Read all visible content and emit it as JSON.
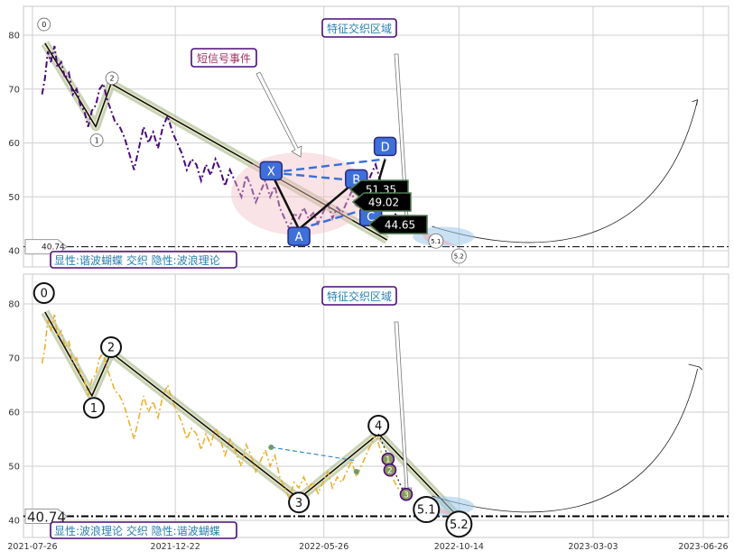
{
  "chart_data": [
    {
      "type": "line",
      "panel": "top",
      "ylim": [
        38,
        86
      ],
      "yticks": [
        40,
        50,
        60,
        70,
        80
      ],
      "grid": true,
      "legend": "",
      "series": [
        {
          "color": "#4b0a78",
          "style": "dash-dot",
          "points": [
            [
              "2021-08-05",
              69
            ],
            [
              "2021-08-08",
              72
            ],
            [
              "2021-08-11",
              77
            ],
            [
              "2021-08-14",
              75
            ],
            [
              "2021-08-18",
              78
            ],
            [
              "2021-08-21",
              74
            ],
            [
              "2021-08-25",
              75
            ],
            [
              "2021-08-29",
              72
            ],
            [
              "2021-09-02",
              73
            ],
            [
              "2021-09-06",
              69
            ],
            [
              "2021-09-10",
              70
            ],
            [
              "2021-09-14",
              67
            ],
            [
              "2021-09-18",
              66
            ],
            [
              "2021-09-22",
              63
            ],
            [
              "2021-09-26",
              66
            ],
            [
              "2021-09-30",
              67
            ],
            [
              "2021-10-04",
              70
            ],
            [
              "2021-10-08",
              71
            ],
            [
              "2021-10-12",
              68
            ],
            [
              "2021-10-16",
              66
            ],
            [
              "2021-10-20",
              64
            ],
            [
              "2021-10-25",
              63
            ],
            [
              "2021-10-30",
              61
            ],
            [
              "2021-11-04",
              58
            ],
            [
              "2021-11-09",
              55
            ],
            [
              "2021-11-14",
              59
            ],
            [
              "2021-11-19",
              63
            ],
            [
              "2021-11-24",
              60
            ],
            [
              "2021-11-29",
              62
            ],
            [
              "2021-12-04",
              59
            ],
            [
              "2021-12-09",
              63
            ],
            [
              "2021-12-14",
              65
            ],
            [
              "2021-12-19",
              62
            ],
            [
              "2021-12-24",
              60
            ],
            [
              "2021-12-29",
              58
            ],
            [
              "2022-01-03",
              55
            ],
            [
              "2022-01-08",
              57
            ],
            [
              "2022-01-13",
              56
            ],
            [
              "2022-01-18",
              53
            ],
            [
              "2022-01-23",
              56
            ],
            [
              "2022-01-28",
              54
            ],
            [
              "2022-02-02",
              57
            ],
            [
              "2022-02-07",
              55
            ],
            [
              "2022-02-12",
              52
            ],
            [
              "2022-02-17",
              55
            ],
            [
              "2022-02-22",
              53
            ],
            [
              "2022-03-01",
              50
            ],
            [
              "2022-03-06",
              54
            ],
            [
              "2022-03-11",
              52
            ],
            [
              "2022-03-16",
              49
            ],
            [
              "2022-03-21",
              51
            ],
            [
              "2022-03-26",
              53
            ],
            [
              "2022-03-31",
              50
            ],
            [
              "2022-04-05",
              52
            ],
            [
              "2022-04-10",
              48
            ],
            [
              "2022-04-15",
              46
            ],
            [
              "2022-04-20",
              44
            ],
            [
              "2022-04-25",
              47
            ],
            [
              "2022-04-30",
              46
            ],
            [
              "2022-05-05",
              48
            ],
            [
              "2022-05-10",
              46
            ],
            [
              "2022-05-15",
              47
            ],
            [
              "2022-05-20",
              45
            ],
            [
              "2022-05-25",
              47
            ],
            [
              "2022-05-30",
              49
            ],
            [
              "2022-06-04",
              46
            ],
            [
              "2022-06-09",
              48
            ],
            [
              "2022-06-14",
              47
            ],
            [
              "2022-06-19",
              49
            ],
            [
              "2022-06-24",
              51
            ],
            [
              "2022-06-29",
              48
            ],
            [
              "2022-07-04",
              50
            ],
            [
              "2022-07-09",
              52
            ],
            [
              "2022-07-14",
              54
            ],
            [
              "2022-07-19",
              56
            ],
            [
              "2022-07-24",
              53
            ],
            [
              "2022-07-29",
              51
            ],
            [
              "2022-08-03",
              49
            ],
            [
              "2022-08-08",
              47
            ],
            [
              "2022-08-13",
              45.5
            ],
            [
              "2022-08-18",
              44.5
            ],
            [
              "2022-08-23",
              44
            ]
          ]
        }
      ],
      "zigzag": [
        [
          "2021-08-08",
          78.5
        ],
        [
          "2021-09-30",
          63
        ],
        [
          "2021-10-16",
          71
        ],
        [
          "2022-07-31",
          42
        ]
      ],
      "pattern_points": [
        {
          "label": "X",
          "x": "2022-04-01",
          "y": 54.5
        },
        {
          "label": "A",
          "x": "2022-04-30",
          "y": 44
        },
        {
          "label": "B",
          "x": "2022-06-29",
          "y": 53
        },
        {
          "label": "C",
          "x": "2022-07-14",
          "y": 48
        },
        {
          "label": "D",
          "x": "2022-07-29",
          "y": 57
        }
      ],
      "wave_markers": [
        {
          "label": "0",
          "x": "2021-08-07",
          "y": 82
        },
        {
          "label": "1",
          "x": "2021-10-01",
          "y": 60.5
        },
        {
          "label": "2",
          "x": "2021-10-17",
          "y": 72
        },
        {
          "label": "5.1",
          "x": "2022-09-20",
          "y": 41.8
        },
        {
          "label": "5.2",
          "x": "2022-10-14",
          "y": 39
        }
      ],
      "price_labels": [
        "51.35",
        "49.02",
        "44.65"
      ],
      "annotations": {
        "short_signal": "短信号事件",
        "feature_zone": "特征交织区域",
        "summary": "显性:谐波蝴蝶 交织 隐性:波浪理论"
      },
      "hline": {
        "value": 40.74,
        "label": "40.74"
      }
    },
    {
      "type": "line",
      "panel": "bottom",
      "ylim": [
        38,
        86
      ],
      "yticks": [
        40,
        50,
        60,
        70,
        80
      ],
      "grid": true,
      "legend": "",
      "series": [
        {
          "color": "#e8b030",
          "style": "dash-dot",
          "points": [
            [
              "2021-08-05",
              69
            ],
            [
              "2021-08-08",
              72
            ],
            [
              "2021-08-11",
              77
            ],
            [
              "2021-08-14",
              75
            ],
            [
              "2021-08-18",
              78
            ],
            [
              "2021-08-21",
              74
            ],
            [
              "2021-08-25",
              75
            ],
            [
              "2021-08-29",
              72
            ],
            [
              "2021-09-02",
              73
            ],
            [
              "2021-09-06",
              69
            ],
            [
              "2021-09-10",
              70
            ],
            [
              "2021-09-14",
              67
            ],
            [
              "2021-09-18",
              66
            ],
            [
              "2021-09-22",
              63
            ],
            [
              "2021-09-26",
              66
            ],
            [
              "2021-09-30",
              67
            ],
            [
              "2021-10-04",
              70
            ],
            [
              "2021-10-08",
              71
            ],
            [
              "2021-10-12",
              68
            ],
            [
              "2021-10-16",
              66
            ],
            [
              "2021-10-20",
              64
            ],
            [
              "2021-10-25",
              63
            ],
            [
              "2021-10-30",
              61
            ],
            [
              "2021-11-04",
              58
            ],
            [
              "2021-11-09",
              55
            ],
            [
              "2021-11-14",
              59
            ],
            [
              "2021-11-19",
              63
            ],
            [
              "2021-11-24",
              60
            ],
            [
              "2021-11-29",
              62
            ],
            [
              "2021-12-04",
              59
            ],
            [
              "2021-12-09",
              63
            ],
            [
              "2021-12-14",
              65
            ],
            [
              "2021-12-19",
              62
            ],
            [
              "2021-12-24",
              60
            ],
            [
              "2021-12-29",
              58
            ],
            [
              "2022-01-03",
              55
            ],
            [
              "2022-01-08",
              57
            ],
            [
              "2022-01-13",
              56
            ],
            [
              "2022-01-18",
              53
            ],
            [
              "2022-01-23",
              56
            ],
            [
              "2022-01-28",
              54
            ],
            [
              "2022-02-02",
              57
            ],
            [
              "2022-02-07",
              55
            ],
            [
              "2022-02-12",
              52
            ],
            [
              "2022-02-17",
              55
            ],
            [
              "2022-02-22",
              53
            ],
            [
              "2022-03-01",
              50
            ],
            [
              "2022-03-06",
              54
            ],
            [
              "2022-03-11",
              52
            ],
            [
              "2022-03-16",
              49
            ],
            [
              "2022-03-21",
              51
            ],
            [
              "2022-03-26",
              53
            ],
            [
              "2022-03-31",
              50
            ],
            [
              "2022-04-05",
              52
            ],
            [
              "2022-04-10",
              48
            ],
            [
              "2022-04-15",
              46
            ],
            [
              "2022-04-20",
              44
            ],
            [
              "2022-04-25",
              47
            ],
            [
              "2022-04-30",
              46
            ],
            [
              "2022-05-05",
              48
            ],
            [
              "2022-05-10",
              46
            ],
            [
              "2022-05-15",
              47
            ],
            [
              "2022-05-20",
              45
            ],
            [
              "2022-05-25",
              47
            ],
            [
              "2022-05-30",
              49
            ],
            [
              "2022-06-04",
              46
            ],
            [
              "2022-06-09",
              48
            ],
            [
              "2022-06-14",
              47
            ],
            [
              "2022-06-19",
              49
            ],
            [
              "2022-06-24",
              51
            ],
            [
              "2022-06-29",
              48
            ],
            [
              "2022-07-04",
              50
            ],
            [
              "2022-07-09",
              52
            ],
            [
              "2022-07-14",
              54
            ],
            [
              "2022-07-19",
              56
            ],
            [
              "2022-07-24",
              53
            ],
            [
              "2022-07-29",
              51
            ],
            [
              "2022-08-03",
              49
            ],
            [
              "2022-08-08",
              47
            ],
            [
              "2022-08-13",
              45.5
            ],
            [
              "2022-08-18",
              44.5
            ],
            [
              "2022-08-23",
              44
            ]
          ]
        }
      ],
      "zigzag": [
        [
          "2021-08-08",
          78.5
        ],
        [
          "2021-09-26",
          63
        ],
        [
          "2021-10-16",
          71
        ],
        [
          "2022-04-30",
          44
        ],
        [
          "2022-07-22",
          56
        ],
        [
          "2022-10-14",
          40.5
        ]
      ],
      "wave_markers": [
        {
          "label": "0",
          "x": "2021-08-07",
          "y": 82
        },
        {
          "label": "1",
          "x": "2021-09-28",
          "y": 60.8
        },
        {
          "label": "2",
          "x": "2021-10-16",
          "y": 72
        },
        {
          "label": "3",
          "x": "2022-04-30",
          "y": 43.3
        },
        {
          "label": "4",
          "x": "2022-07-22",
          "y": 57.5
        },
        {
          "label": "5.1",
          "x": "2022-09-10",
          "y": 42
        },
        {
          "label": "5.2",
          "x": "2022-10-14",
          "y": 39.3
        }
      ],
      "sub_waves": [
        "1",
        "2",
        "3"
      ],
      "annotations": {
        "feature_zone": "特征交织区域",
        "summary": "显性:波浪理论 交织 隐性:谐波蝴蝶"
      },
      "hline": {
        "value": 40.74,
        "label": "40.74"
      },
      "x_ticks": [
        "2021-07-26",
        "2021-12-22",
        "2022-05-26",
        "2022-10-14",
        "2023-03-03",
        "2023-06-26"
      ]
    }
  ]
}
